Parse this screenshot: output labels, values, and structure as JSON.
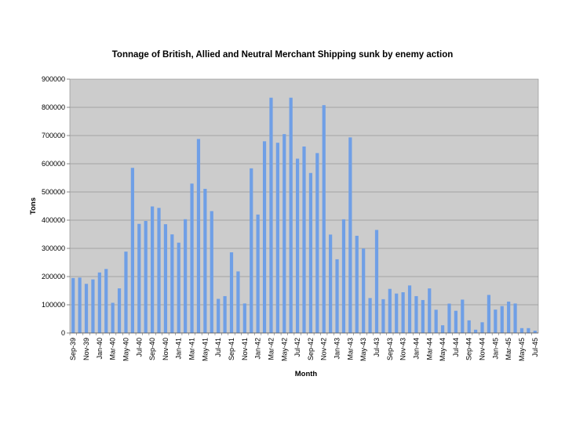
{
  "chart_data": {
    "type": "bar",
    "title": "Tonnage of British, Allied and Neutral Merchant Shipping sunk by enemy action",
    "xlabel": "Month",
    "ylabel": "Tons",
    "ylim": [
      0,
      900000
    ],
    "yticks": [
      "0",
      "100000",
      "200000",
      "300000",
      "400000",
      "500000",
      "600000",
      "700000",
      "800000",
      "900000"
    ],
    "grid": true,
    "legend": "none",
    "colors": {
      "bar": "#6f9fe6",
      "plot_bg": "#cccccc",
      "grid": "#999999"
    },
    "categories": [
      "Sep-39",
      "Oct-39",
      "Nov-39",
      "Dec-39",
      "Jan-40",
      "Feb-40",
      "Mar-40",
      "Apr-40",
      "May-40",
      "Jun-40",
      "Jul-40",
      "Aug-40",
      "Sep-40",
      "Oct-40",
      "Nov-40",
      "Dec-40",
      "Jan-41",
      "Feb-41",
      "Mar-41",
      "Apr-41",
      "May-41",
      "Jun-41",
      "Jul-41",
      "Aug-41",
      "Sep-41",
      "Oct-41",
      "Nov-41",
      "Dec-41",
      "Jan-42",
      "Feb-42",
      "Mar-42",
      "Apr-42",
      "May-42",
      "Jun-42",
      "Jul-42",
      "Aug-42",
      "Sep-42",
      "Oct-42",
      "Nov-42",
      "Dec-42",
      "Jan-43",
      "Feb-43",
      "Mar-43",
      "Apr-43",
      "May-43",
      "Jun-43",
      "Jul-43",
      "Aug-43",
      "Sep-43",
      "Oct-43",
      "Nov-43",
      "Dec-43",
      "Jan-44",
      "Feb-44",
      "Mar-44",
      "Apr-44",
      "May-44",
      "Jun-44",
      "Jul-44",
      "Aug-44",
      "Sep-44",
      "Oct-44",
      "Nov-44",
      "Dec-44",
      "Jan-45",
      "Feb-45",
      "Mar-45",
      "Apr-45",
      "May-45",
      "Jun-45",
      "Jul-45"
    ],
    "values": [
      194845,
      196355,
      174269,
      189933,
      214506,
      226920,
      107009,
      158218,
      288461,
      585496,
      386913,
      397229,
      448621,
      443545,
      385715,
      349568,
      320240,
      403393,
      529706,
      687901,
      511042,
      432025,
      120975,
      130699,
      285942,
      218289,
      104640,
      583706,
      419907,
      679632,
      834164,
      674457,
      705050,
      834196,
      618113,
      661133,
      567327,
      637833,
      807754,
      348902,
      261359,
      403062,
      693389,
      344680,
      299428,
      123825,
      365398,
      119801,
      156419,
      139861,
      144391,
      168524,
      130635,
      116855,
      157960,
      82372,
      27297,
      104084,
      78756,
      118304,
      44805,
      11668,
      37980,
      134913,
      82897,
      95316,
      111204,
      104512,
      17198,
      17198,
      8000
    ]
  }
}
